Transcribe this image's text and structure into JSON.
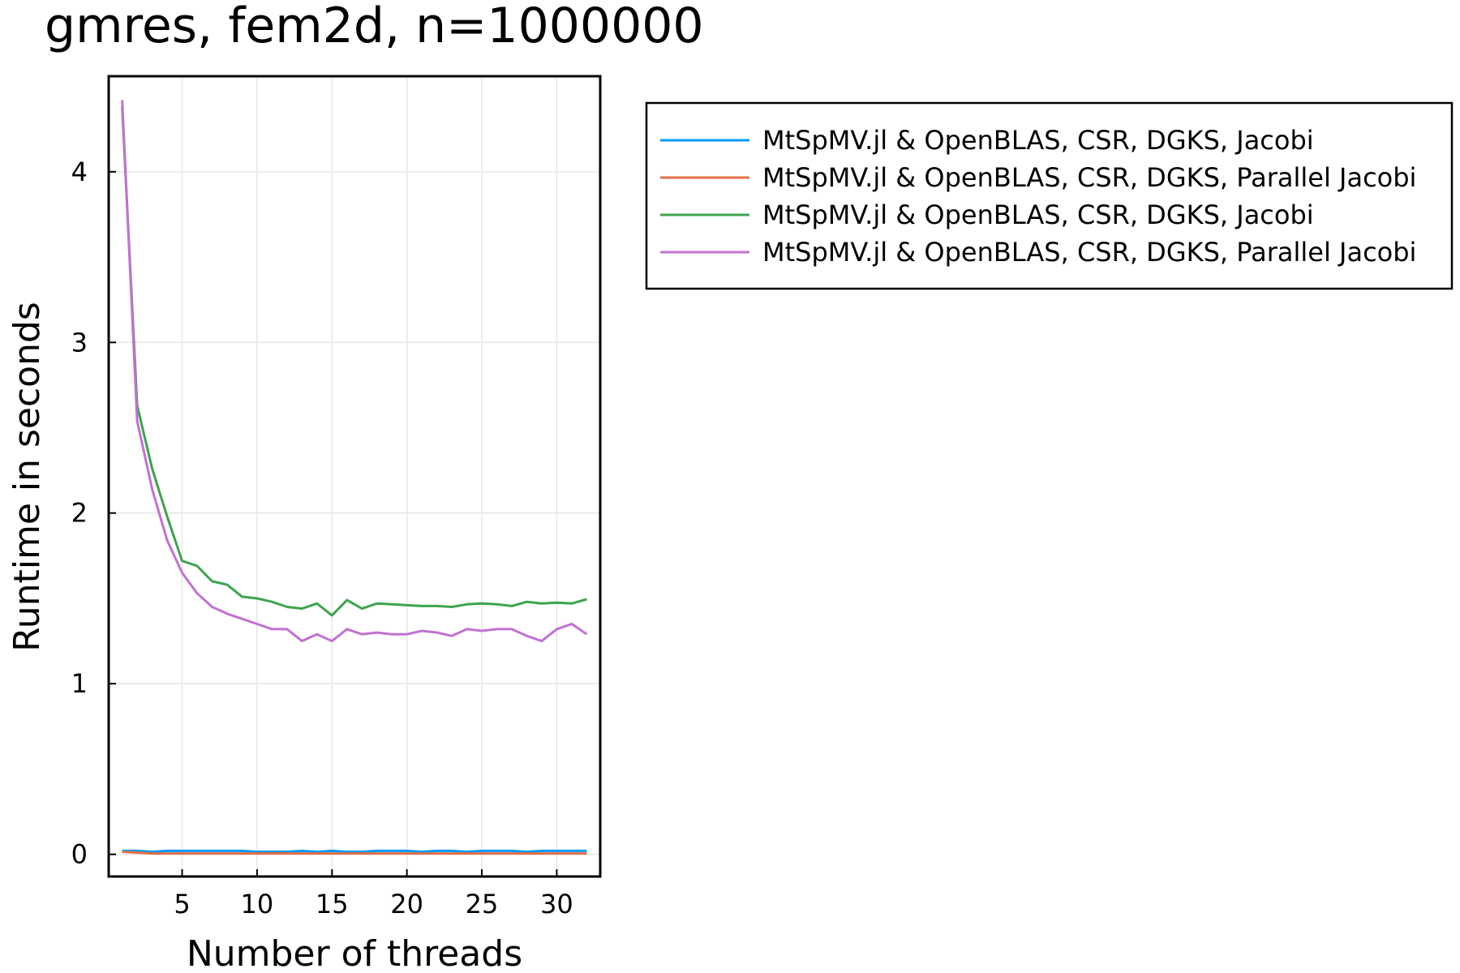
{
  "chart_data": {
    "type": "line",
    "title": "gmres, fem2d, n=1000000",
    "xlabel": "Number of threads",
    "ylabel": "Runtime in seconds",
    "xlim": [
      0.1,
      32.9
    ],
    "ylim": [
      -0.13,
      4.56
    ],
    "xticks": [
      5,
      10,
      15,
      20,
      25,
      30
    ],
    "yticks": [
      0,
      1,
      2,
      3,
      4
    ],
    "grid": true,
    "legend_position": "outside-right-top",
    "x": [
      1,
      2,
      3,
      4,
      5,
      6,
      7,
      8,
      9,
      10,
      11,
      12,
      13,
      14,
      15,
      16,
      17,
      18,
      19,
      20,
      21,
      22,
      23,
      24,
      25,
      26,
      27,
      28,
      29,
      30,
      31,
      32
    ],
    "series": [
      {
        "name": "MtSpMV.jl & OpenBLAS, CSR, DGKS, Jacobi",
        "color": "#009af9",
        "values": [
          0.02,
          0.02,
          0.015,
          0.02,
          0.02,
          0.02,
          0.02,
          0.02,
          0.02,
          0.015,
          0.015,
          0.015,
          0.02,
          0.015,
          0.02,
          0.015,
          0.015,
          0.02,
          0.02,
          0.02,
          0.015,
          0.02,
          0.02,
          0.015,
          0.02,
          0.02,
          0.02,
          0.015,
          0.02,
          0.02,
          0.02,
          0.02
        ]
      },
      {
        "name": "MtSpMV.jl & OpenBLAS, CSR, DGKS, Parallel Jacobi",
        "color": "#e26f46",
        "values": [
          0.015,
          0.01,
          0.005,
          0.005,
          0.005,
          0.005,
          0.005,
          0.005,
          0.005,
          0.005,
          0.005,
          0.005,
          0.005,
          0.005,
          0.005,
          0.005,
          0.005,
          0.005,
          0.005,
          0.005,
          0.005,
          0.005,
          0.005,
          0.005,
          0.005,
          0.005,
          0.005,
          0.005,
          0.005,
          0.005,
          0.005,
          0.005
        ]
      },
      {
        "name": "MtSpMV.jl & OpenBLAS, CSR, DGKS, Jacobi",
        "color": "#3da44d",
        "values": [
          4.38,
          2.63,
          2.26,
          1.98,
          1.72,
          1.69,
          1.6,
          1.58,
          1.51,
          1.5,
          1.48,
          1.45,
          1.44,
          1.47,
          1.4,
          1.49,
          1.44,
          1.47,
          1.465,
          1.46,
          1.455,
          1.455,
          1.45,
          1.465,
          1.47,
          1.465,
          1.455,
          1.48,
          1.47,
          1.475,
          1.47,
          1.495
        ]
      },
      {
        "name": "MtSpMV.jl & OpenBLAS, CSR, DGKS, Parallel Jacobi",
        "color": "#c271d2",
        "values": [
          4.42,
          2.54,
          2.14,
          1.84,
          1.65,
          1.53,
          1.45,
          1.41,
          1.38,
          1.35,
          1.32,
          1.32,
          1.25,
          1.29,
          1.25,
          1.32,
          1.29,
          1.3,
          1.29,
          1.29,
          1.31,
          1.3,
          1.28,
          1.32,
          1.31,
          1.32,
          1.32,
          1.28,
          1.25,
          1.32,
          1.35,
          1.29
        ]
      }
    ]
  }
}
